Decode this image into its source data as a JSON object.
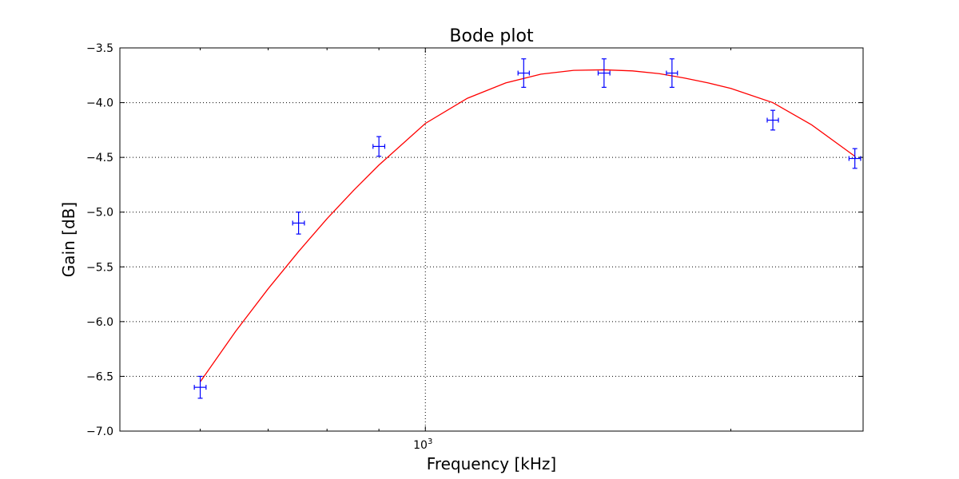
{
  "chart_data": {
    "type": "scatter",
    "title": "Bode plot",
    "xlabel": "Frequency [kHz]",
    "ylabel": "Gain [dB]",
    "x_scale": "log",
    "xlim": [
      500,
      2700
    ],
    "ylim": [
      -7.0,
      -3.5
    ],
    "grid": true,
    "y_ticks": [
      -7.0,
      -6.5,
      -6.0,
      -5.5,
      -5.0,
      -4.5,
      -4.0,
      -3.5
    ],
    "y_tick_labels": [
      "−7.0",
      "−6.5",
      "−6.0",
      "−5.5",
      "−5.0",
      "−4.5",
      "−4.0",
      "−3.5"
    ],
    "x_major_ticks": [
      1000
    ],
    "x_major_tick_labels": [
      "10"
    ],
    "x_major_tick_exponents": [
      "3"
    ],
    "x_minor_ticks": [
      600,
      700,
      800,
      900,
      2000
    ],
    "series": [
      {
        "kind": "errorbar",
        "color": "#0000ff",
        "x": [
          600,
          750,
          900,
          1250,
          1500,
          1750,
          2200,
          2650
        ],
        "y": [
          -6.6,
          -5.1,
          -4.4,
          -3.73,
          -3.73,
          -3.73,
          -4.16,
          -4.51
        ],
        "yerr": [
          0.1,
          0.1,
          0.09,
          0.13,
          0.13,
          0.13,
          0.09,
          0.09
        ],
        "xerr": [
          8,
          10,
          12,
          16,
          20,
          22,
          28,
          35
        ]
      },
      {
        "kind": "line",
        "color": "#ff0000",
        "x": [
          600,
          650,
          700,
          750,
          800,
          850,
          900,
          1000,
          1100,
          1200,
          1300,
          1400,
          1500,
          1600,
          1700,
          1800,
          1900,
          2000,
          2200,
          2400,
          2650
        ],
        "y": [
          -6.55,
          -6.09,
          -5.7,
          -5.36,
          -5.06,
          -4.8,
          -4.57,
          -4.19,
          -3.96,
          -3.82,
          -3.74,
          -3.705,
          -3.7,
          -3.71,
          -3.735,
          -3.775,
          -3.82,
          -3.87,
          -4.0,
          -4.2,
          -4.49
        ]
      }
    ]
  }
}
